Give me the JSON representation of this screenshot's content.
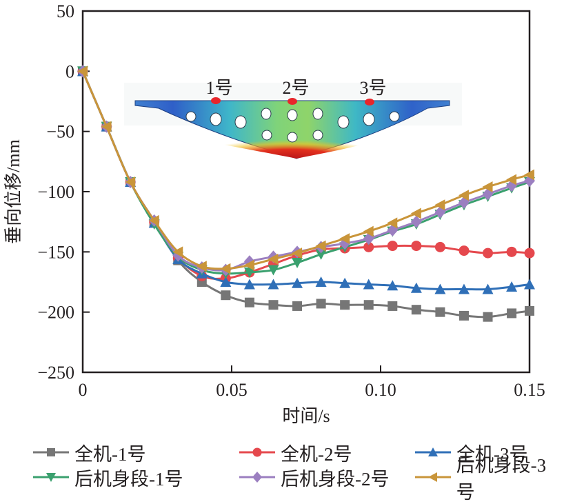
{
  "chart_data": {
    "type": "line",
    "title": "",
    "xlabel": "时间/s",
    "ylabel": "垂向位移/mm",
    "xlim": [
      0,
      0.15
    ],
    "ylim": [
      -250,
      50
    ],
    "xticks": [
      0,
      0.05,
      0.1,
      0.15
    ],
    "xtick_labels": [
      "0",
      "0.05",
      "0.10",
      "0.15"
    ],
    "yticks": [
      50,
      0,
      -50,
      -100,
      -150,
      -200,
      -250
    ],
    "ytick_labels": [
      "50",
      "0",
      "−50",
      "−100",
      "−150",
      "−200",
      "−250"
    ],
    "grid": false,
    "legend_position": "bottom",
    "x": [
      0,
      0.008,
      0.016,
      0.024,
      0.032,
      0.04,
      0.048,
      0.056,
      0.064,
      0.072,
      0.08,
      0.088,
      0.096,
      0.104,
      0.112,
      0.12,
      0.128,
      0.136,
      0.144,
      0.15
    ],
    "series": [
      {
        "name": "全机-1号",
        "color": "#767676",
        "marker": "square",
        "values": [
          0,
          -46,
          -92,
          -125,
          -157,
          -175,
          -186,
          -192,
          -194,
          -195,
          -193,
          -194,
          -194,
          -195,
          -198,
          -200,
          -203,
          -204,
          -201,
          -199
        ]
      },
      {
        "name": "全机-2号",
        "color": "#e5484d",
        "marker": "circle",
        "values": [
          0,
          -46,
          -92,
          -125,
          -155,
          -170,
          -172,
          -167,
          -160,
          -153,
          -148,
          -147,
          -146,
          -145,
          -145,
          -146,
          -149,
          -151,
          -150,
          -151
        ]
      },
      {
        "name": "全机-3号",
        "color": "#2f6fb7",
        "marker": "triangle-up",
        "values": [
          0,
          -46,
          -92,
          -126,
          -156,
          -168,
          -175,
          -177,
          -177,
          -176,
          -175,
          -176,
          -177,
          -178,
          -180,
          -181,
          -181,
          -181,
          -179,
          -177
        ]
      },
      {
        "name": "后机身段-1号",
        "color": "#3aa06e",
        "marker": "triangle-down",
        "values": [
          0,
          -46,
          -92,
          -127,
          -154,
          -165,
          -168,
          -167,
          -165,
          -159,
          -152,
          -146,
          -140,
          -133,
          -127,
          -119,
          -111,
          -104,
          -97,
          -92
        ]
      },
      {
        "name": "后机身段-2号",
        "color": "#9b7fc0",
        "marker": "diamond",
        "values": [
          0,
          -46,
          -92,
          -124,
          -153,
          -163,
          -165,
          -158,
          -154,
          -150,
          -146,
          -143,
          -139,
          -132,
          -125,
          -117,
          -109,
          -102,
          -95,
          -91
        ]
      },
      {
        "name": "后机身段-3号",
        "color": "#c9953a",
        "marker": "triangle-left",
        "values": [
          0,
          -46,
          -92,
          -124,
          -150,
          -162,
          -164,
          -161,
          -156,
          -151,
          -145,
          -139,
          -133,
          -126,
          -118,
          -111,
          -103,
          -96,
          -90,
          -86
        ]
      }
    ],
    "inset": {
      "description": "fuselage frame displacement contour",
      "points": [
        {
          "label": "1号"
        },
        {
          "label": "2号"
        },
        {
          "label": "3号"
        }
      ],
      "point_color": "#e8262b"
    }
  }
}
